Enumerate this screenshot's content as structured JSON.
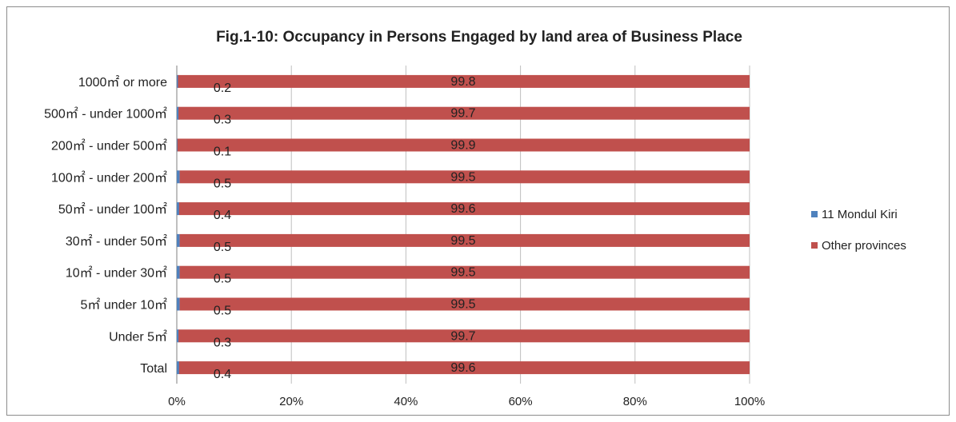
{
  "chart_data": {
    "type": "bar",
    "orientation": "horizontal",
    "stacked": "percent",
    "title": "Fig.1-10: Occupancy in Persons Engaged by land area of Business Place",
    "categories": [
      "1000㎡ or more",
      "500㎡ - under 1000㎡",
      "200㎡ - under 500㎡",
      "100㎡ - under 200㎡",
      "50㎡ - under 100㎡",
      "30㎡ - under 50㎡",
      "10㎡ - under 30㎡",
      "5㎡  under 10㎡",
      "Under 5㎡",
      "Total"
    ],
    "series": [
      {
        "name": "11 Mondul Kiri",
        "color": "#4f81bd",
        "values": [
          0.2,
          0.3,
          0.1,
          0.5,
          0.4,
          0.5,
          0.5,
          0.5,
          0.3,
          0.4
        ]
      },
      {
        "name": "Other provinces",
        "color": "#c0504d",
        "values": [
          99.8,
          99.7,
          99.9,
          99.5,
          99.6,
          99.5,
          99.5,
          99.5,
          99.7,
          99.6
        ]
      }
    ],
    "xlim": [
      0,
      100
    ],
    "x_ticks": [
      "0%",
      "20%",
      "40%",
      "60%",
      "80%",
      "100%"
    ],
    "grid": "vertical",
    "legend_position": "right"
  }
}
